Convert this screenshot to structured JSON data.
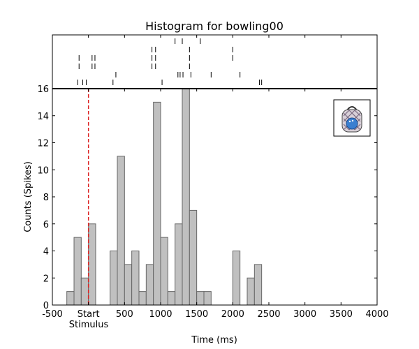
{
  "chart_data": {
    "type": "bar",
    "title": "Histogram for bowling00",
    "xlabel": "Time (ms)",
    "ylabel": "Counts (Spikes)",
    "xlim": [
      -500,
      4000
    ],
    "ylim": [
      0,
      16
    ],
    "x_ticks": [
      {
        "value": -500,
        "label": "-500"
      },
      {
        "value": 0,
        "label": "Start"
      },
      {
        "value": 500,
        "label": "500"
      },
      {
        "value": 1000,
        "label": "1000"
      },
      {
        "value": 1500,
        "label": "1500"
      },
      {
        "value": 2000,
        "label": "2000"
      },
      {
        "value": 2500,
        "label": "2500"
      },
      {
        "value": 3000,
        "label": "3000"
      },
      {
        "value": 3500,
        "label": "3500"
      },
      {
        "value": 4000,
        "label": "4000"
      }
    ],
    "y_ticks": [
      0,
      2,
      4,
      6,
      8,
      10,
      12,
      14,
      16
    ],
    "stimulus": {
      "value": 0,
      "label": "Stimulus",
      "color": "#dd2222"
    },
    "bar_color": "#c0c0c0",
    "bar_edge_color": "#666666",
    "bin_width": 100,
    "bins": [
      {
        "x": -300,
        "count": 1
      },
      {
        "x": -200,
        "count": 5
      },
      {
        "x": -100,
        "count": 2
      },
      {
        "x": 0,
        "count": 6
      },
      {
        "x": 300,
        "count": 4
      },
      {
        "x": 400,
        "count": 11
      },
      {
        "x": 500,
        "count": 3
      },
      {
        "x": 600,
        "count": 4
      },
      {
        "x": 700,
        "count": 1
      },
      {
        "x": 800,
        "count": 3
      },
      {
        "x": 900,
        "count": 15
      },
      {
        "x": 1000,
        "count": 5
      },
      {
        "x": 1100,
        "count": 1
      },
      {
        "x": 1200,
        "count": 6
      },
      {
        "x": 1300,
        "count": 16
      },
      {
        "x": 1400,
        "count": 7
      },
      {
        "x": 1500,
        "count": 1
      },
      {
        "x": 1600,
        "count": 1
      },
      {
        "x": 2000,
        "count": 4
      },
      {
        "x": 2200,
        "count": 2
      },
      {
        "x": 2300,
        "count": 3
      }
    ],
    "raster": {
      "trials": [
        [
          1200,
          1300,
          1550
        ],
        [
          880,
          930,
          1400,
          2000
        ],
        [
          -130,
          50,
          90,
          880,
          930,
          1400,
          2000
        ],
        [
          -130,
          50,
          90,
          880,
          930,
          1400
        ],
        [
          380,
          1240,
          1270,
          1310,
          1420,
          1700,
          2100
        ]
      ],
      "bottom_trial": [
        -150,
        -80,
        -30,
        340,
        1020,
        2370,
        2400
      ]
    },
    "legend": {
      "placement": "top-right",
      "icon": "bowling-bag-icon"
    }
  }
}
